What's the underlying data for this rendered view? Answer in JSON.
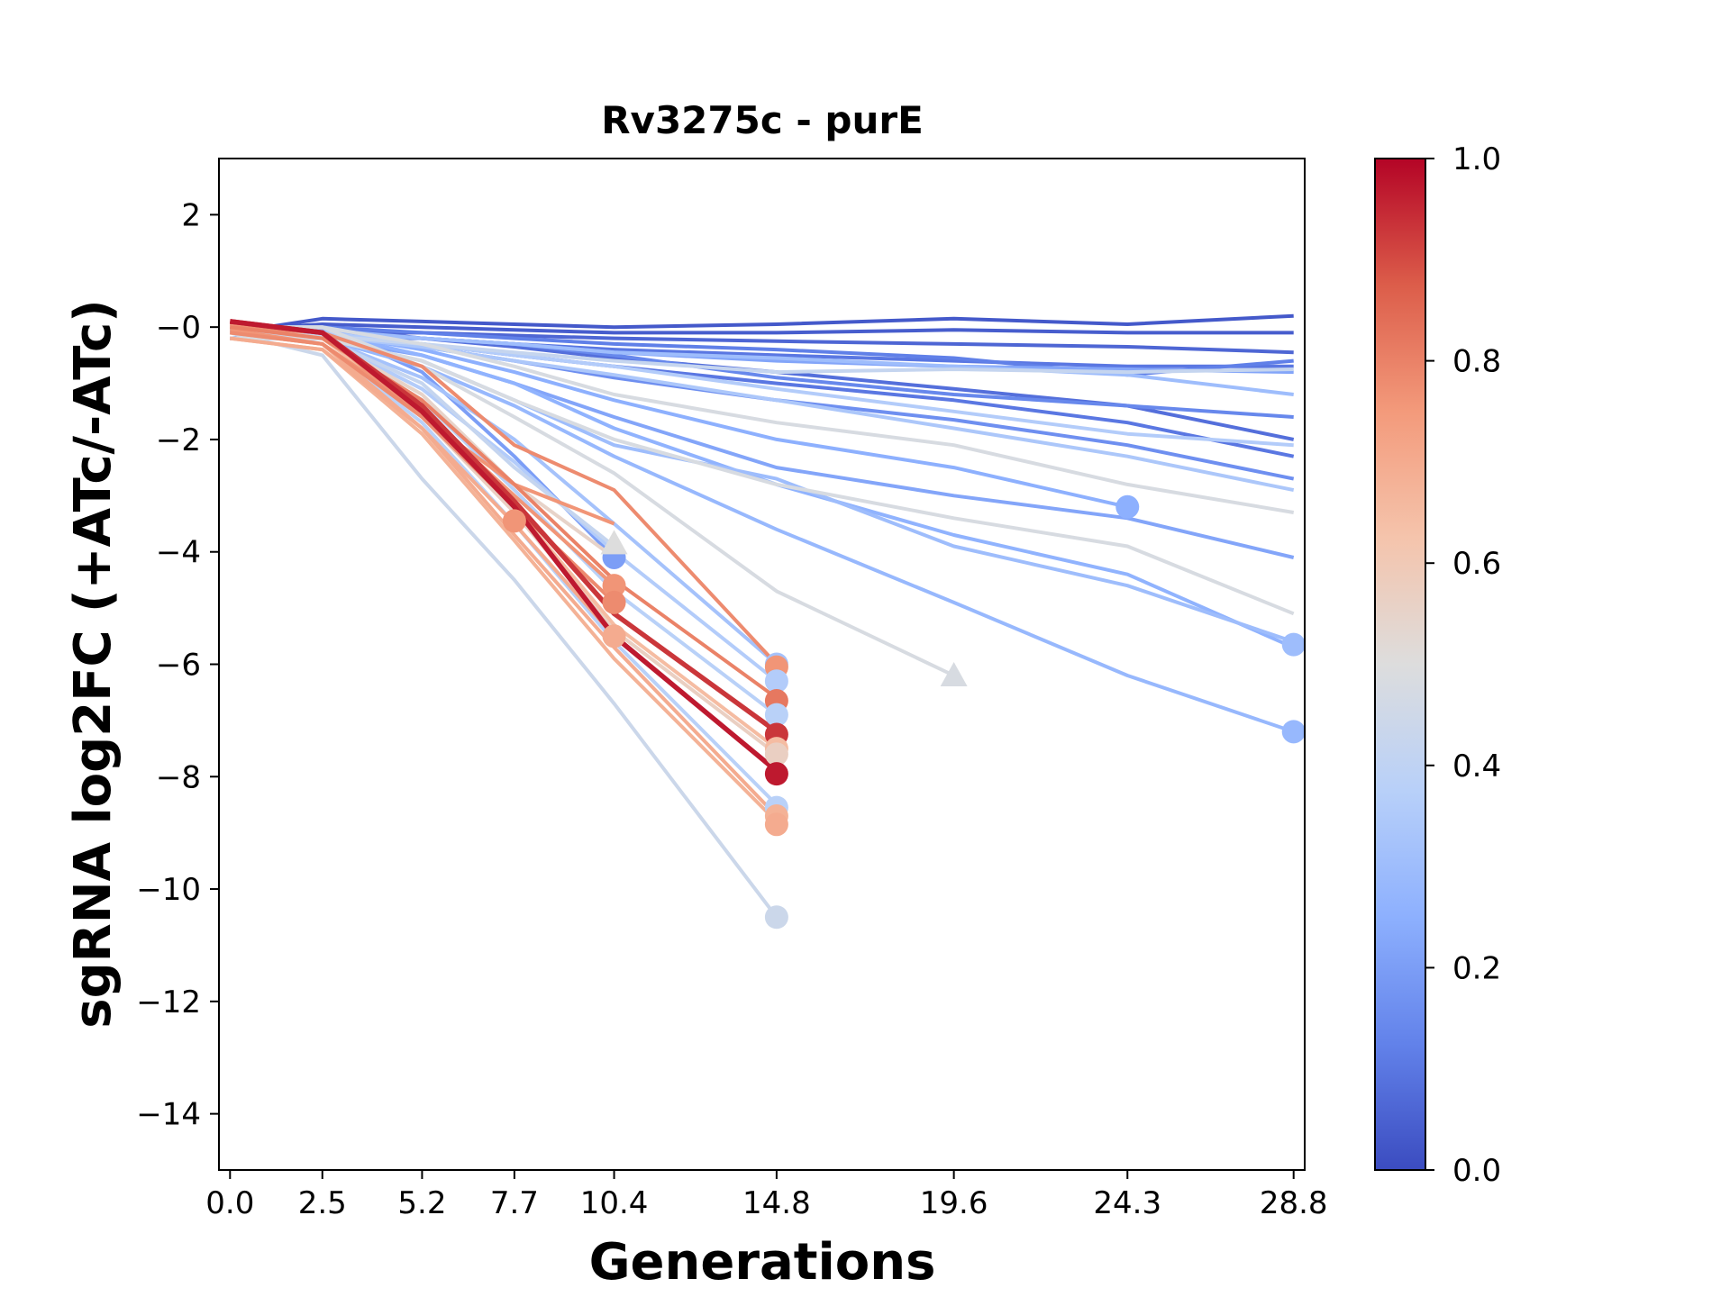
{
  "chart_data": {
    "type": "line",
    "title": "Rv3275c - purE",
    "xlabel": "Generations",
    "ylabel": "sgRNA log2FC (+ATc/-ATc)",
    "xlim": [
      -0.3,
      29.1
    ],
    "ylim": [
      -15,
      3
    ],
    "xticks": [
      0.0,
      2.5,
      5.2,
      7.7,
      10.4,
      14.8,
      19.6,
      24.3,
      28.8
    ],
    "xtick_labels": [
      "0.0",
      "2.5",
      "5.2",
      "7.7",
      "10.4",
      "14.8",
      "19.6",
      "24.3",
      "28.8"
    ],
    "yticks": [
      2,
      0,
      -2,
      -4,
      -6,
      -8,
      -10,
      -12,
      -14
    ],
    "ytick_labels": [
      "2",
      "−0",
      "−2",
      "−4",
      "−6",
      "−8",
      "−10",
      "−12",
      "−14"
    ],
    "colorbar": {
      "range": [
        0.0,
        1.0
      ],
      "ticks": [
        0.0,
        0.2,
        0.4,
        0.6,
        0.8,
        1.0
      ],
      "tick_labels": [
        "0.0",
        "0.2",
        "0.4",
        "0.6",
        "0.8",
        "1.0"
      ],
      "colormap": "coolwarm",
      "stops": [
        "#3b4cc0",
        "#6282ea",
        "#8db0fe",
        "#b8d0f9",
        "#dddddd",
        "#f5c4ac",
        "#f39a7b",
        "#dc5d4a",
        "#b40426"
      ]
    },
    "series": [
      {
        "c": 0.03,
        "x": [
          0,
          2.5,
          5.2,
          7.7,
          10.4,
          14.8,
          19.6,
          24.3,
          28.8
        ],
        "y": [
          -0.1,
          0.15,
          0.1,
          0.05,
          0.0,
          0.05,
          0.15,
          0.05,
          0.2
        ]
      },
      {
        "c": 0.04,
        "x": [
          0,
          2.5,
          5.2,
          7.7,
          10.4,
          14.8,
          19.6,
          24.3,
          28.8
        ],
        "y": [
          -0.05,
          0.05,
          0.0,
          -0.05,
          -0.1,
          -0.1,
          -0.05,
          -0.1,
          -0.1
        ]
      },
      {
        "c": 0.06,
        "x": [
          0,
          2.5,
          5.2,
          7.7,
          10.4,
          14.8,
          19.6,
          24.3,
          28.8
        ],
        "y": [
          0.0,
          -0.1,
          -0.1,
          -0.15,
          -0.2,
          -0.25,
          -0.3,
          -0.35,
          -0.45
        ]
      },
      {
        "c": 0.1,
        "x": [
          0,
          2.5,
          5.2,
          7.7,
          10.4,
          14.8,
          19.6,
          24.3,
          28.8
        ],
        "y": [
          -0.2,
          -0.1,
          -0.2,
          -0.3,
          -0.4,
          -0.5,
          -0.6,
          -0.7,
          -0.7
        ]
      },
      {
        "c": 0.12,
        "x": [
          0,
          2.5,
          5.2,
          7.7,
          10.4,
          14.8,
          19.6,
          24.3,
          28.8
        ],
        "y": [
          -0.1,
          0.0,
          -0.1,
          -0.2,
          -0.3,
          -0.4,
          -0.55,
          -0.85,
          -0.6
        ]
      },
      {
        "c": 0.08,
        "x": [
          0,
          2.5,
          5.2,
          7.7,
          10.4,
          14.8,
          19.6,
          24.3,
          28.8
        ],
        "y": [
          -0.1,
          0.0,
          -0.2,
          -0.35,
          -0.55,
          -0.8,
          -1.1,
          -1.4,
          -2.0
        ]
      },
      {
        "c": 0.1,
        "x": [
          0,
          2.5,
          5.2,
          7.7,
          10.4,
          14.8,
          19.6,
          24.3,
          28.8
        ],
        "y": [
          -0.2,
          -0.1,
          -0.3,
          -0.5,
          -0.7,
          -1.0,
          -1.3,
          -1.7,
          -2.3
        ]
      },
      {
        "c": 0.14,
        "x": [
          0,
          2.5,
          5.2,
          7.7,
          10.4,
          14.8,
          19.6,
          24.3,
          28.8
        ],
        "y": [
          0.0,
          -0.2,
          -0.2,
          -0.3,
          -0.5,
          -0.9,
          -1.2,
          -1.4,
          -1.6
        ]
      },
      {
        "c": 0.16,
        "x": [
          0,
          2.5,
          5.2,
          7.7,
          10.4,
          14.8,
          19.6,
          24.3,
          28.8
        ],
        "y": [
          -0.1,
          -0.1,
          -0.35,
          -0.6,
          -0.9,
          -1.3,
          -1.65,
          -2.1,
          -2.7
        ]
      },
      {
        "c": 0.22,
        "x": [
          0,
          2.5,
          5.2,
          7.7,
          10.4,
          14.8,
          19.6,
          24.3,
          28.8
        ],
        "y": [
          -0.1,
          -0.1,
          -0.2,
          -0.3,
          -0.45,
          -0.6,
          -0.7,
          -0.75,
          -0.8
        ]
      },
      {
        "c": 0.3,
        "x": [
          0,
          2.5,
          5.2,
          7.7,
          10.4,
          14.8,
          19.6,
          24.3,
          28.8
        ],
        "y": [
          0.0,
          -0.05,
          -0.2,
          -0.3,
          -0.45,
          -0.55,
          -0.7,
          -0.85,
          -1.2
        ]
      },
      {
        "c": 0.36,
        "x": [
          0,
          2.5,
          5.2,
          7.7,
          10.4,
          14.8,
          19.6,
          24.3,
          28.8
        ],
        "y": [
          -0.1,
          -0.1,
          -0.3,
          -0.5,
          -0.7,
          -1.1,
          -1.5,
          -1.9,
          -2.1
        ]
      },
      {
        "c": 0.34,
        "x": [
          0,
          2.5,
          5.2,
          7.7,
          10.4,
          14.8,
          19.6,
          24.3,
          28.8
        ],
        "y": [
          -0.1,
          -0.15,
          -0.35,
          -0.6,
          -0.85,
          -1.3,
          -1.8,
          -2.3,
          -2.9
        ]
      },
      {
        "c": 0.42,
        "x": [
          0,
          2.5,
          5.2,
          7.7,
          10.4,
          14.8,
          19.6,
          24.3,
          28.8
        ],
        "y": [
          -0.2,
          -0.15,
          -0.3,
          -0.45,
          -0.6,
          -0.8,
          -0.75,
          -0.8,
          -0.75
        ]
      },
      {
        "c": 0.48,
        "x": [
          0,
          2.5,
          5.2,
          7.7,
          10.4,
          14.8,
          19.6,
          24.3,
          28.8
        ],
        "y": [
          0.0,
          0.0,
          -0.3,
          -0.7,
          -1.2,
          -1.7,
          -2.1,
          -2.8,
          -3.3
        ]
      },
      {
        "c": 0.25,
        "x": [
          0,
          2.5,
          5.2,
          7.7,
          10.4,
          14.8,
          19.6,
          24.3
        ],
        "y": [
          -0.1,
          -0.1,
          -0.4,
          -0.8,
          -1.3,
          -2.0,
          -2.5,
          -3.2
        ]
      },
      {
        "c": 0.22,
        "x": [
          0,
          2.5,
          5.2,
          7.7,
          10.4,
          14.8,
          19.6,
          24.3,
          28.8
        ],
        "y": [
          -0.2,
          -0.2,
          -0.5,
          -1.0,
          -1.6,
          -2.5,
          -3.0,
          -3.4,
          -4.1
        ]
      },
      {
        "c": 0.48,
        "x": [
          0,
          2.5,
          5.2,
          7.7,
          10.4,
          14.8,
          19.6,
          24.3,
          28.8
        ],
        "y": [
          -0.2,
          -0.2,
          -0.6,
          -1.3,
          -2.0,
          -2.8,
          -3.4,
          -3.9,
          -5.1
        ]
      },
      {
        "c": 0.26,
        "x": [
          0,
          2.5,
          5.2,
          7.7,
          10.4,
          14.8,
          19.6,
          24.3,
          28.8
        ],
        "y": [
          -0.1,
          -0.1,
          -0.5,
          -1.0,
          -1.8,
          -2.8,
          -3.7,
          -4.4,
          -5.7
        ]
      },
      {
        "c": 0.3,
        "x": [
          0,
          2.5,
          5.2,
          7.7,
          10.4,
          14.8,
          19.6,
          24.3,
          28.8
        ],
        "y": [
          -0.1,
          -0.2,
          -0.6,
          -1.3,
          -2.1,
          -2.7,
          -3.9,
          -4.6,
          -5.6
        ]
      },
      {
        "c": 0.28,
        "x": [
          0,
          2.5,
          5.2,
          7.7,
          10.4,
          14.8,
          19.6,
          24.3,
          28.8
        ],
        "y": [
          -0.2,
          -0.2,
          -0.7,
          -1.4,
          -2.3,
          -3.6,
          -4.9,
          -6.2,
          -7.2
        ]
      },
      {
        "c": 0.48,
        "x": [
          0,
          2.5,
          5.2,
          7.7,
          10.4,
          14.8,
          19.6
        ],
        "y": [
          0.0,
          0.0,
          -0.7,
          -1.6,
          -2.6,
          -4.7,
          -6.2
        ]
      },
      {
        "c": 0.76,
        "x": [
          0,
          2.5,
          5.2,
          7.7,
          10.4
        ],
        "y": [
          0.05,
          -0.1,
          -1.6,
          -2.8,
          -3.5
        ]
      },
      {
        "c": 0.2,
        "x": [
          0,
          2.5,
          5.2,
          7.7,
          10.4
        ],
        "y": [
          0.0,
          0.0,
          -0.8,
          -2.3,
          -4.1
        ]
      },
      {
        "c": 0.42,
        "x": [
          0,
          2.5,
          5.2,
          7.7,
          10.4
        ],
        "y": [
          -0.05,
          -0.2,
          -1.0,
          -2.5,
          -3.9
        ]
      },
      {
        "c": 0.55,
        "x": [
          0,
          2.5,
          5.2,
          7.7,
          10.4
        ],
        "y": [
          0.05,
          -0.2,
          -1.2,
          -2.8,
          -4.1
        ]
      },
      {
        "c": 0.76,
        "x": [
          0,
          2.5,
          5.2,
          7.7,
          10.4
        ],
        "y": [
          -0.05,
          -0.3,
          -1.5,
          -3.0,
          -4.6
        ]
      },
      {
        "c": 0.78,
        "x": [
          0,
          2.5,
          5.2,
          7.7,
          10.4
        ],
        "y": [
          -0.1,
          -0.3,
          -1.6,
          -3.2,
          -4.9
        ]
      },
      {
        "c": 0.7,
        "x": [
          0,
          2.5,
          5.2,
          7.7,
          10.4
        ],
        "y": [
          -0.2,
          -0.4,
          -1.8,
          -3.5,
          -5.5
        ]
      },
      {
        "c": 0.78,
        "x": [
          0,
          2.5,
          5.2,
          7.7,
          10.4,
          14.8
        ],
        "y": [
          0.0,
          -0.1,
          -0.7,
          -2.1,
          -2.9,
          -6.0
        ]
      },
      {
        "c": 0.32,
        "x": [
          0,
          2.5,
          5.2,
          7.7,
          10.4,
          14.8
        ],
        "y": [
          -0.1,
          -0.2,
          -0.9,
          -2.0,
          -3.5,
          -6.0
        ]
      },
      {
        "c": 0.36,
        "x": [
          0,
          2.5,
          5.2,
          7.7,
          10.4,
          14.8
        ],
        "y": [
          0.0,
          -0.2,
          -1.1,
          -2.4,
          -4.0,
          -6.3
        ]
      },
      {
        "c": 0.8,
        "x": [
          0,
          2.5,
          5.2,
          7.7,
          10.4,
          14.8
        ],
        "y": [
          0.0,
          -0.2,
          -1.3,
          -2.8,
          -4.5,
          -6.6
        ]
      },
      {
        "c": 0.38,
        "x": [
          0,
          2.5,
          5.2,
          7.7,
          10.4,
          14.8
        ],
        "y": [
          0.0,
          -0.2,
          -1.3,
          -2.9,
          -4.7,
          -6.9
        ]
      },
      {
        "c": 0.93,
        "x": [
          0,
          2.5,
          5.2,
          7.7,
          10.4,
          14.8
        ],
        "y": [
          0.1,
          -0.1,
          -1.4,
          -3.1,
          -5.1,
          -7.2
        ]
      },
      {
        "c": 0.65,
        "x": [
          0,
          2.5,
          5.2,
          7.7,
          10.4,
          14.8
        ],
        "y": [
          0.0,
          -0.2,
          -1.5,
          -3.2,
          -5.3,
          -7.5
        ]
      },
      {
        "c": 0.57,
        "x": [
          0,
          2.5,
          5.2,
          7.7,
          10.4,
          14.8
        ],
        "y": [
          -0.1,
          -0.3,
          -1.6,
          -3.3,
          -5.4,
          -7.6
        ]
      },
      {
        "c": 0.97,
        "x": [
          0,
          2.5,
          5.2,
          7.7,
          10.4,
          14.8
        ],
        "y": [
          0.1,
          -0.1,
          -1.5,
          -3.2,
          -5.5,
          -7.9
        ]
      },
      {
        "c": 0.38,
        "x": [
          0,
          2.5,
          5.2,
          7.7,
          10.4,
          14.8
        ],
        "y": [
          0.0,
          -0.3,
          -1.7,
          -3.5,
          -5.6,
          -8.5
        ]
      },
      {
        "c": 0.7,
        "x": [
          0,
          2.5,
          5.2,
          7.7,
          10.4,
          14.8
        ],
        "y": [
          -0.1,
          -0.3,
          -1.8,
          -3.7,
          -5.7,
          -8.7
        ]
      },
      {
        "c": 0.68,
        "x": [
          0,
          2.5,
          5.2,
          7.7,
          10.4,
          14.8
        ],
        "y": [
          -0.2,
          -0.4,
          -1.9,
          -3.8,
          -5.9,
          -8.8
        ]
      },
      {
        "c": 0.44,
        "x": [
          0,
          2.5,
          5.2,
          7.7,
          10.4,
          14.8
        ],
        "y": [
          -0.1,
          -0.5,
          -2.7,
          -4.5,
          -6.7,
          -10.5
        ]
      }
    ],
    "markers": [
      {
        "x": 24.3,
        "y": -3.2,
        "c": 0.25,
        "shape": "circle"
      },
      {
        "x": 28.8,
        "y": -5.65,
        "c": 0.3,
        "shape": "circle"
      },
      {
        "x": 28.8,
        "y": -7.2,
        "c": 0.28,
        "shape": "circle"
      },
      {
        "x": 19.6,
        "y": -6.2,
        "c": 0.48,
        "shape": "triangle"
      },
      {
        "x": 7.7,
        "y": -3.45,
        "c": 0.76,
        "shape": "circle"
      },
      {
        "x": 10.4,
        "y": -4.1,
        "c": 0.2,
        "shape": "circle"
      },
      {
        "x": 10.4,
        "y": -3.85,
        "c": 0.5,
        "shape": "triangle"
      },
      {
        "x": 10.4,
        "y": -4.6,
        "c": 0.76,
        "shape": "circle"
      },
      {
        "x": 10.4,
        "y": -4.9,
        "c": 0.78,
        "shape": "circle"
      },
      {
        "x": 10.4,
        "y": -5.5,
        "c": 0.7,
        "shape": "circle"
      },
      {
        "x": 14.8,
        "y": -6.0,
        "c": 0.32,
        "shape": "circle"
      },
      {
        "x": 14.8,
        "y": -6.05,
        "c": 0.76,
        "shape": "circle"
      },
      {
        "x": 14.8,
        "y": -6.3,
        "c": 0.36,
        "shape": "circle"
      },
      {
        "x": 14.8,
        "y": -6.65,
        "c": 0.82,
        "shape": "circle"
      },
      {
        "x": 14.8,
        "y": -6.9,
        "c": 0.38,
        "shape": "circle"
      },
      {
        "x": 14.8,
        "y": -7.25,
        "c": 0.93,
        "shape": "circle"
      },
      {
        "x": 14.8,
        "y": -7.5,
        "c": 0.65,
        "shape": "circle"
      },
      {
        "x": 14.8,
        "y": -7.6,
        "c": 0.57,
        "shape": "circle"
      },
      {
        "x": 14.8,
        "y": -7.95,
        "c": 0.97,
        "shape": "circle"
      },
      {
        "x": 14.8,
        "y": -8.55,
        "c": 0.38,
        "shape": "circle"
      },
      {
        "x": 14.8,
        "y": -8.7,
        "c": 0.68,
        "shape": "circle"
      },
      {
        "x": 14.8,
        "y": -8.85,
        "c": 0.7,
        "shape": "circle"
      },
      {
        "x": 14.8,
        "y": -10.5,
        "c": 0.44,
        "shape": "circle"
      }
    ]
  }
}
